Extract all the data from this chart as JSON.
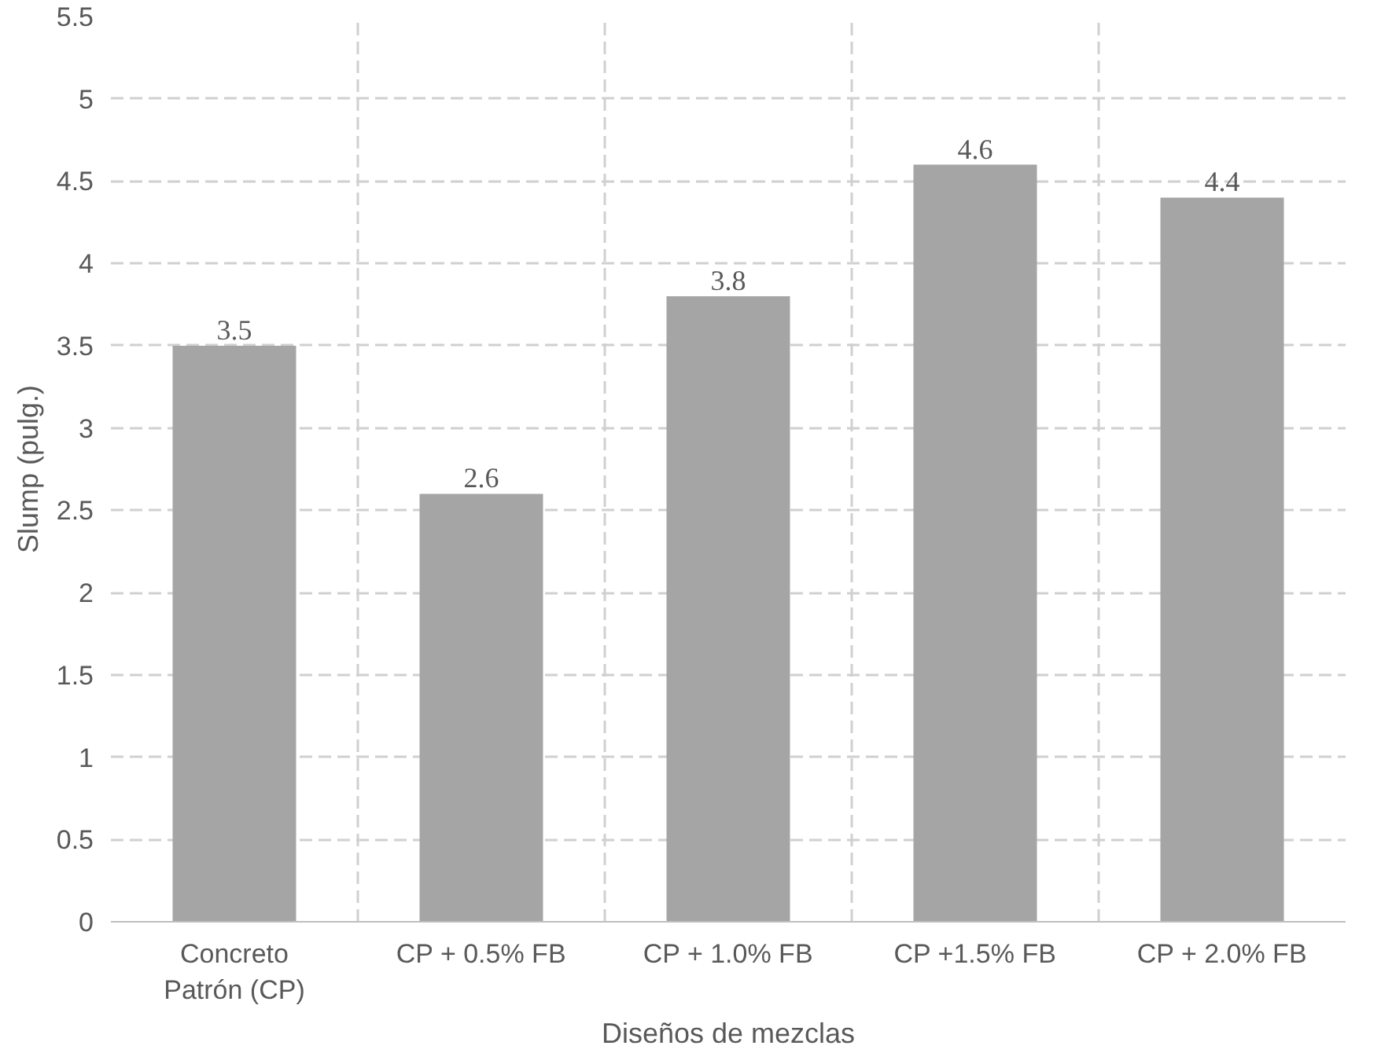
{
  "chart_data": {
    "type": "bar",
    "xlabel": "Diseños de mezclas",
    "ylabel": "Slump (pulg.)",
    "categories": [
      "Concreto Patrón (CP)",
      "CP + 0.5% FB",
      "CP + 1.0% FB",
      "CP +1.5% FB",
      "CP + 2.0% FB"
    ],
    "values": [
      3.5,
      2.6,
      3.8,
      4.6,
      4.4
    ],
    "color": "#a5a5a5",
    "ylim": [
      0,
      5.5
    ],
    "yticks": [
      0,
      0.5,
      1,
      1.5,
      2,
      2.5,
      3,
      3.5,
      4,
      4.5,
      5,
      5.5
    ],
    "grid": true,
    "data_labels": true
  }
}
